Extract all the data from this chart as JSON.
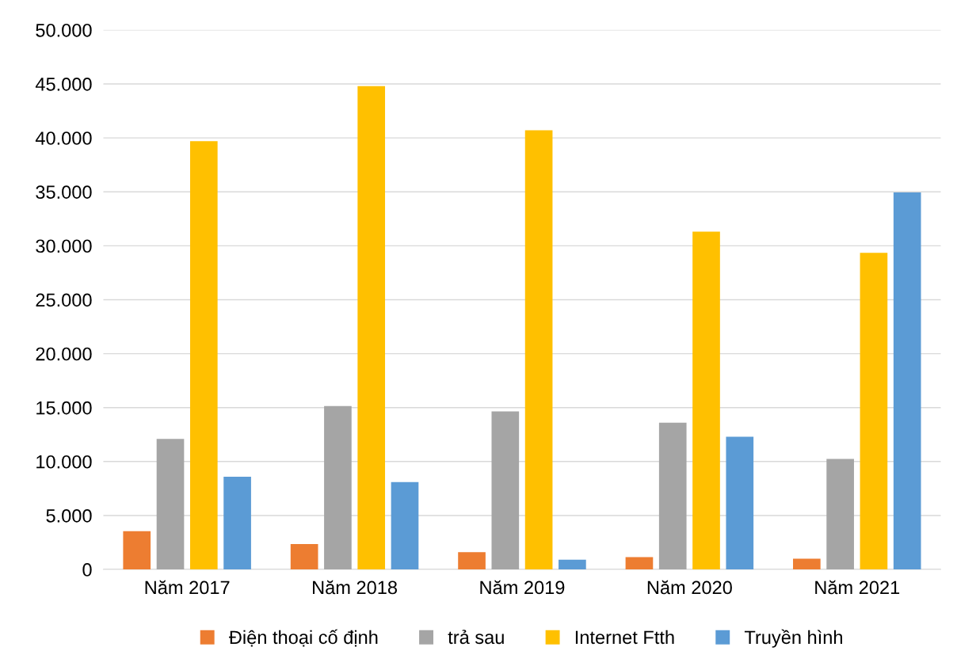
{
  "chart_data": {
    "type": "bar",
    "categories": [
      "Năm 2017",
      "Năm 2018",
      "Năm 2019",
      "Năm 2020",
      "Năm 2021"
    ],
    "series": [
      {
        "name": "Điện thoại cố định",
        "color": "#ed7d31",
        "values": [
          3550,
          2350,
          1600,
          1150,
          1000
        ]
      },
      {
        "name": "trả sau",
        "color": "#a5a5a5",
        "values": [
          12100,
          15150,
          14650,
          13600,
          10250
        ]
      },
      {
        "name": "Internet Ftth",
        "color": "#ffc000",
        "values": [
          39700,
          44800,
          40700,
          31300,
          29350
        ]
      },
      {
        "name": "Truyền hình",
        "color": "#5b9bd5",
        "values": [
          8600,
          8100,
          900,
          12300,
          34950
        ]
      }
    ],
    "ylim": [
      0,
      50000
    ],
    "yticks": [
      0,
      {
        "value": 5000,
        "label": "5.000"
      },
      {
        "value": 10000,
        "label": "10.000"
      },
      {
        "value": 15000,
        "label": "15.000"
      },
      {
        "value": 20000,
        "label": "20.000"
      },
      {
        "value": 25000,
        "label": "25.000"
      },
      {
        "value": 30000,
        "label": "30.000"
      },
      {
        "value": 35000,
        "label": "35.000"
      },
      {
        "value": 40000,
        "label": "40.000"
      },
      {
        "value": 45000,
        "label": "45.000"
      },
      {
        "value": 50000,
        "label": "50.000"
      }
    ],
    "grid": "y",
    "legend": "bottom"
  }
}
